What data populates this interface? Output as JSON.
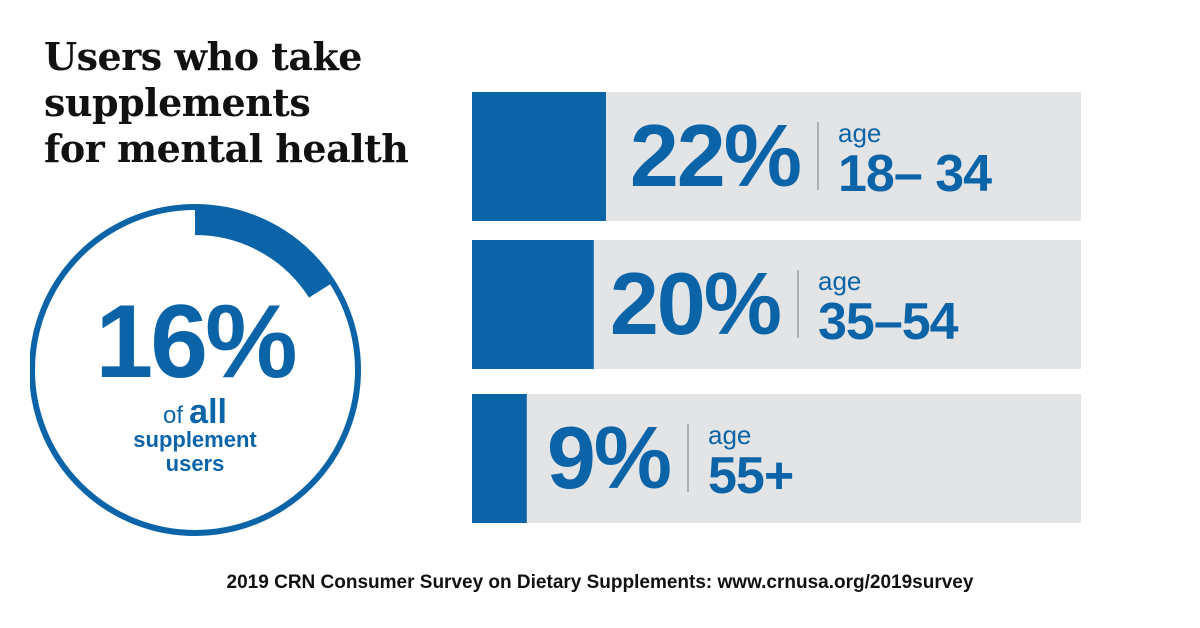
{
  "title_lines": [
    "Users who take",
    "supplements",
    "for mental health"
  ],
  "overall": {
    "value_label": "16%",
    "value": 16,
    "of": "of",
    "all": "all",
    "line2": "supplement",
    "line3": "users"
  },
  "chart_data": {
    "type": "bar",
    "orientation": "horizontal",
    "categories": [
      "age 18–34",
      "age 35–54",
      "age 55+"
    ],
    "values": [
      22,
      20,
      9
    ],
    "value_labels": [
      "22%",
      "20%",
      "9%"
    ],
    "age_word": "age",
    "age_ranges": [
      "18– 34",
      "35–54",
      "55+"
    ],
    "xlim": [
      0,
      100
    ],
    "grid": false
  },
  "footer": "2019 CRN Consumer Survey on Dietary Supplements: www.crnusa.org/2019survey",
  "colors": {
    "accent": "#0b64a8",
    "track": "#e3e4e6",
    "title": "#111111"
  }
}
